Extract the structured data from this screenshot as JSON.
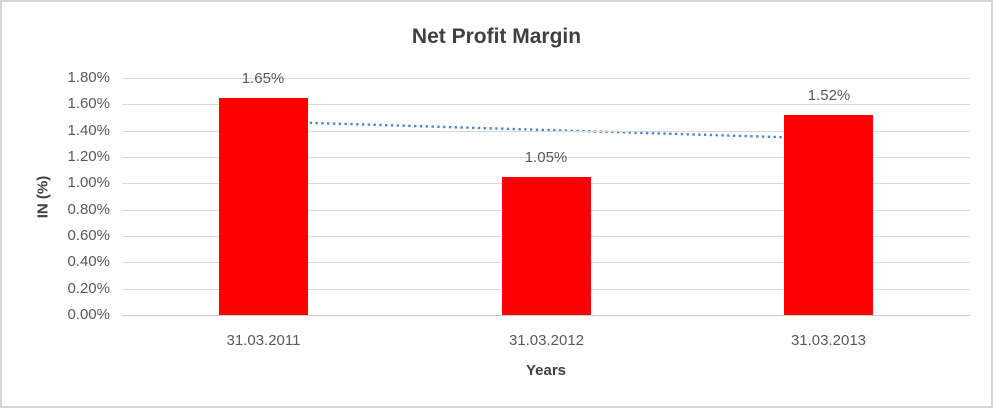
{
  "window": {
    "background": "#ffffff",
    "border_color": "#d6d6d6"
  },
  "chart_data": {
    "type": "bar",
    "title": "Net Profit Margin",
    "xlabel": "Years",
    "ylabel": "IN (%)",
    "categories": [
      "31.03.2011",
      "31.03.2012",
      "31.03.2013"
    ],
    "values": [
      1.65,
      1.05,
      1.52
    ],
    "data_labels": [
      "1.65%",
      "1.05%",
      "1.52%"
    ],
    "yticks": [
      "0.00%",
      "0.20%",
      "0.40%",
      "0.60%",
      "0.80%",
      "1.00%",
      "1.20%",
      "1.40%",
      "1.60%",
      "1.80%"
    ],
    "ytick_values": [
      0.0,
      0.2,
      0.4,
      0.6,
      0.8,
      1.0,
      1.2,
      1.4,
      1.6,
      1.8
    ],
    "ylim": [
      0,
      1.8
    ],
    "grid": true,
    "legend": "none",
    "colors": {
      "bar": "#ff0000",
      "trendline": "#4e87c8",
      "gridline": "#d9d9d9",
      "axis_text": "#595959",
      "title_text": "#404040"
    },
    "trendline": {
      "type": "linear",
      "style": "dotted",
      "color": "#4e87c8",
      "start_value": 1.47,
      "end_value": 1.34
    }
  }
}
